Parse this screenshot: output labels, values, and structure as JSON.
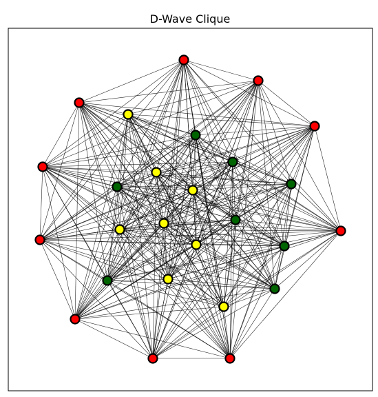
{
  "title": "D-Wave Clique",
  "colors": {
    "red": "#ff0000",
    "yellow": "#ffff00",
    "green": "#006400",
    "node_stroke": "#000000",
    "edge": "#000000",
    "background": "#ffffff"
  },
  "graph": {
    "nodes": [
      {
        "id": "r1",
        "group": "red"
      },
      {
        "id": "r2",
        "group": "red"
      },
      {
        "id": "r3",
        "group": "red"
      },
      {
        "id": "r4",
        "group": "red"
      },
      {
        "id": "r5",
        "group": "red"
      },
      {
        "id": "r6",
        "group": "red"
      },
      {
        "id": "r7",
        "group": "red"
      },
      {
        "id": "r8",
        "group": "red"
      },
      {
        "id": "r9",
        "group": "red"
      },
      {
        "id": "r10",
        "group": "red"
      },
      {
        "id": "y1",
        "group": "yellow"
      },
      {
        "id": "y2",
        "group": "yellow"
      },
      {
        "id": "y3",
        "group": "yellow"
      },
      {
        "id": "y4",
        "group": "yellow"
      },
      {
        "id": "y5",
        "group": "yellow"
      },
      {
        "id": "y6",
        "group": "yellow"
      },
      {
        "id": "y7",
        "group": "yellow"
      },
      {
        "id": "y8",
        "group": "yellow"
      },
      {
        "id": "g1",
        "group": "green"
      },
      {
        "id": "g2",
        "group": "green"
      },
      {
        "id": "g3",
        "group": "green"
      },
      {
        "id": "g4",
        "group": "green"
      },
      {
        "id": "g5",
        "group": "green"
      },
      {
        "id": "g6",
        "group": "green"
      },
      {
        "id": "g7",
        "group": "green"
      },
      {
        "id": "g8",
        "group": "green"
      }
    ]
  }
}
